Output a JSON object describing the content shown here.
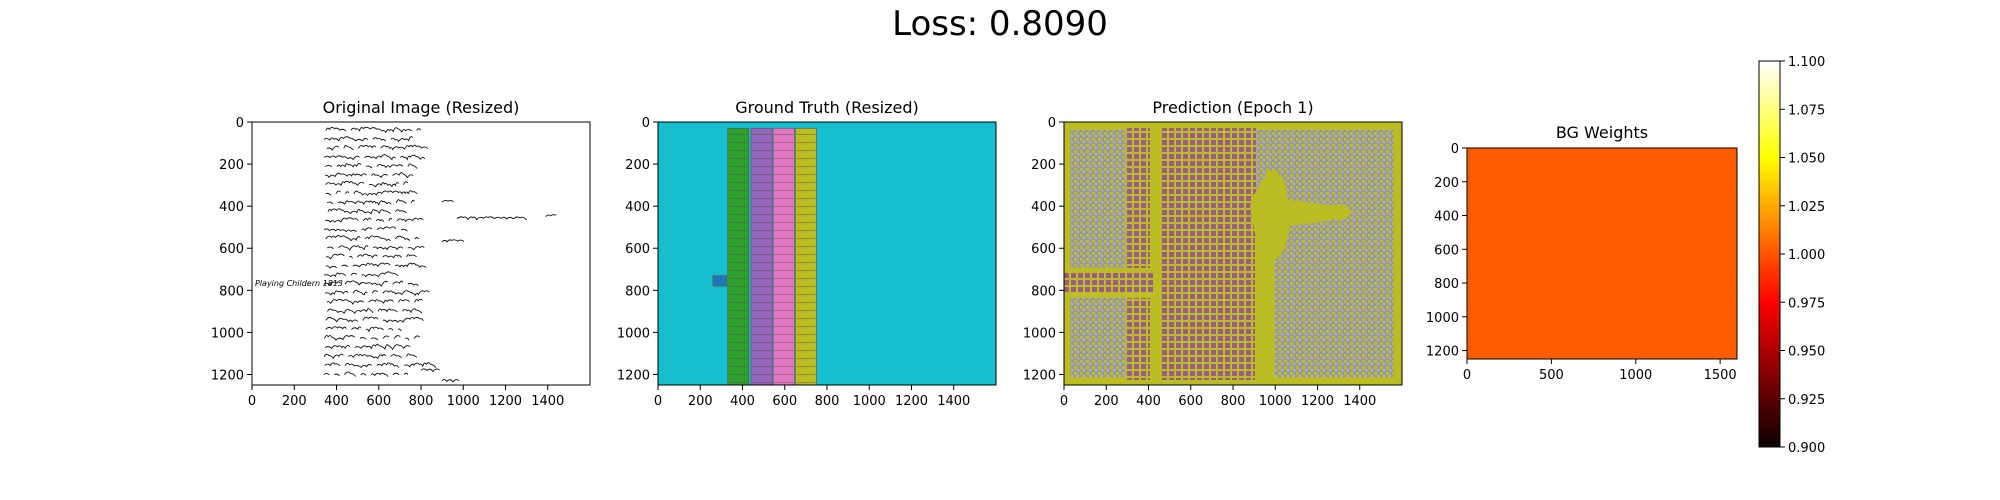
{
  "figure": {
    "suptitle": "Loss: 0.8090"
  },
  "panels": [
    {
      "title": "Original Image (Resized)"
    },
    {
      "title": "Ground Truth (Resized)"
    },
    {
      "title": "Prediction (Epoch 1)"
    },
    {
      "title": "BG Weights"
    }
  ],
  "handwriting": {
    "left_note": "Playing Childern 1813"
  },
  "colors": {
    "gt_background": "#17becf",
    "gt_green": "#2ca02c",
    "gt_purple": "#9467bd",
    "gt_pink": "#e377c2",
    "gt_olive": "#bcbd22",
    "gt_blue": "#1f77b4",
    "pred_gray": "#9a9a9a",
    "pred_olive": "#bcbd22",
    "pred_mauve": "#9b5d86",
    "bg_weight_fill": "#ff5b00"
  },
  "chart_data": [
    {
      "type": "heatmap",
      "title": "Original Image (Resized)",
      "xlim": [
        0,
        1600
      ],
      "ylim": [
        1250,
        0
      ],
      "xticks": [
        0,
        200,
        400,
        600,
        800,
        1000,
        1200,
        1400
      ],
      "yticks": [
        0,
        200,
        400,
        600,
        800,
        1000,
        1200
      ]
    },
    {
      "type": "heatmap",
      "title": "Ground Truth (Resized)",
      "xlim": [
        0,
        1600
      ],
      "ylim": [
        1250,
        0
      ],
      "xticks": [
        0,
        200,
        400,
        600,
        800,
        1000,
        1200,
        1400
      ],
      "yticks": [
        0,
        200,
        400,
        600,
        800,
        1000,
        1200
      ],
      "regions": [
        {
          "label": "column-1",
          "color_key": "gt_green",
          "x": [
            330,
            430
          ],
          "y": [
            30,
            1250
          ]
        },
        {
          "label": "column-2",
          "color_key": "gt_purple",
          "x": [
            440,
            540
          ],
          "y": [
            30,
            1250
          ]
        },
        {
          "label": "column-3",
          "color_key": "gt_pink",
          "x": [
            545,
            645
          ],
          "y": [
            30,
            1250
          ]
        },
        {
          "label": "column-4",
          "color_key": "gt_olive",
          "x": [
            650,
            750
          ],
          "y": [
            30,
            1250
          ]
        },
        {
          "label": "margin-note",
          "color_key": "gt_blue",
          "x": [
            260,
            325
          ],
          "y": [
            730,
            780
          ]
        }
      ]
    },
    {
      "type": "heatmap",
      "title": "Prediction (Epoch 1)",
      "xlim": [
        0,
        1600
      ],
      "ylim": [
        1250,
        0
      ],
      "xticks": [
        0,
        200,
        400,
        600,
        800,
        1000,
        1200,
        1400
      ],
      "yticks": [
        0,
        200,
        400,
        600,
        800,
        1000,
        1200
      ]
    },
    {
      "type": "heatmap",
      "title": "BG Weights",
      "xlim": [
        0,
        1600
      ],
      "ylim": [
        1250,
        0
      ],
      "xticks": [
        0,
        500,
        1000,
        1500
      ],
      "yticks": [
        0,
        200,
        400,
        600,
        800,
        1000,
        1200
      ],
      "value": 1.0,
      "colormap": "hot",
      "colorbar": {
        "range": [
          0.9,
          1.1
        ],
        "ticks": [
          "0.900",
          "0.925",
          "0.950",
          "0.975",
          "1.000",
          "1.025",
          "1.050",
          "1.075",
          "1.100"
        ]
      }
    }
  ]
}
